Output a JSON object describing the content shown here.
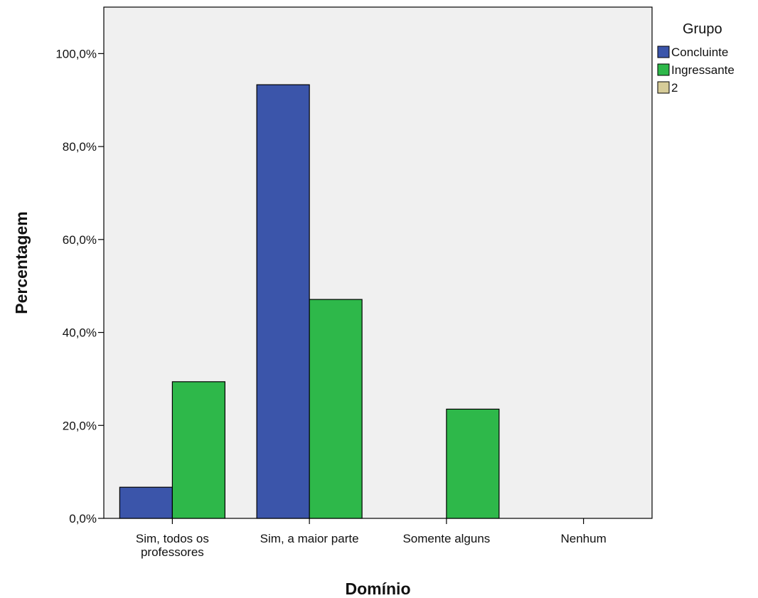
{
  "chart_data": {
    "type": "bar",
    "categories": [
      [
        "Sim, todos os",
        "professores"
      ],
      [
        "Sim, a maior parte"
      ],
      [
        "Somente alguns"
      ],
      [
        "Nenhum"
      ]
    ],
    "series": [
      {
        "name": "Concluinte",
        "color": "#3b55aa",
        "values": [
          6.7,
          93.3,
          0,
          0
        ]
      },
      {
        "name": "Ingressante",
        "color": "#2eb84a",
        "values": [
          29.4,
          47.1,
          23.5,
          0
        ]
      },
      {
        "name": "2",
        "color": "#d6cc98",
        "values": [
          0,
          0,
          0,
          0
        ]
      }
    ],
    "xlabel": "Domínio",
    "ylabel": "Percentagem",
    "ylim": [
      0,
      110
    ],
    "yticks": [
      {
        "value": 0,
        "label": "0,0%"
      },
      {
        "value": 20,
        "label": "20,0%"
      },
      {
        "value": 40,
        "label": "40,0%"
      },
      {
        "value": 60,
        "label": "60,0%"
      },
      {
        "value": 80,
        "label": "80,0%"
      },
      {
        "value": 100,
        "label": "100,0%"
      }
    ],
    "legend": {
      "title": "Grupo",
      "position": "right"
    },
    "plot_background": "#f0f0f0",
    "grid": false
  }
}
